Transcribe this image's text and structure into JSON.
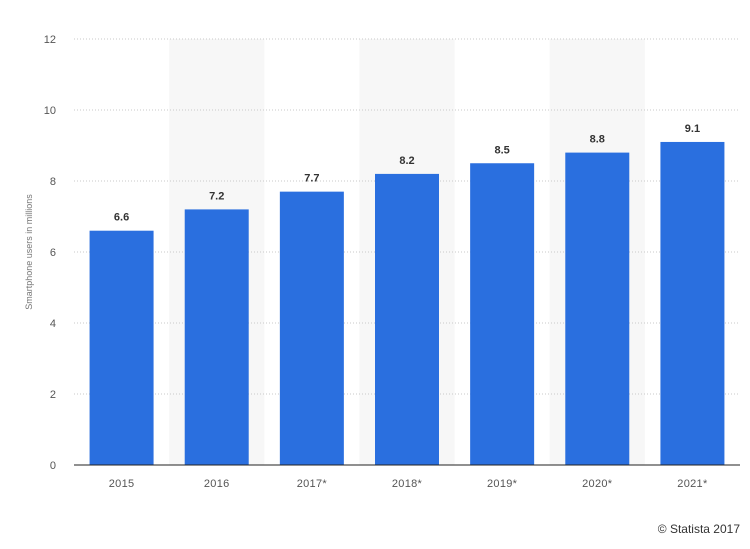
{
  "chart_data": {
    "type": "bar",
    "categories": [
      "2015",
      "2016",
      "2017*",
      "2018*",
      "2019*",
      "2020*",
      "2021*"
    ],
    "values": [
      6.6,
      7.2,
      7.7,
      8.2,
      8.5,
      8.8,
      9.1
    ],
    "value_labels": [
      "6.6",
      "7.2",
      "7.7",
      "8.2",
      "8.5",
      "8.8",
      "9.1"
    ],
    "ylabel": "Smartphone users in millions",
    "ylim": [
      0,
      12
    ],
    "yticks": [
      0,
      2,
      4,
      6,
      8,
      10,
      12
    ],
    "ytick_labels": [
      "0",
      "2",
      "4",
      "6",
      "8",
      "10",
      "12"
    ],
    "grid": "horizontal-dotted",
    "alternating_column_shading": true,
    "colors": {
      "bar": "#2a6fdf",
      "band": "#f7f7f7",
      "grid": "#c8c8c8"
    }
  },
  "footer": {
    "copyright": "© Statista 2017"
  }
}
